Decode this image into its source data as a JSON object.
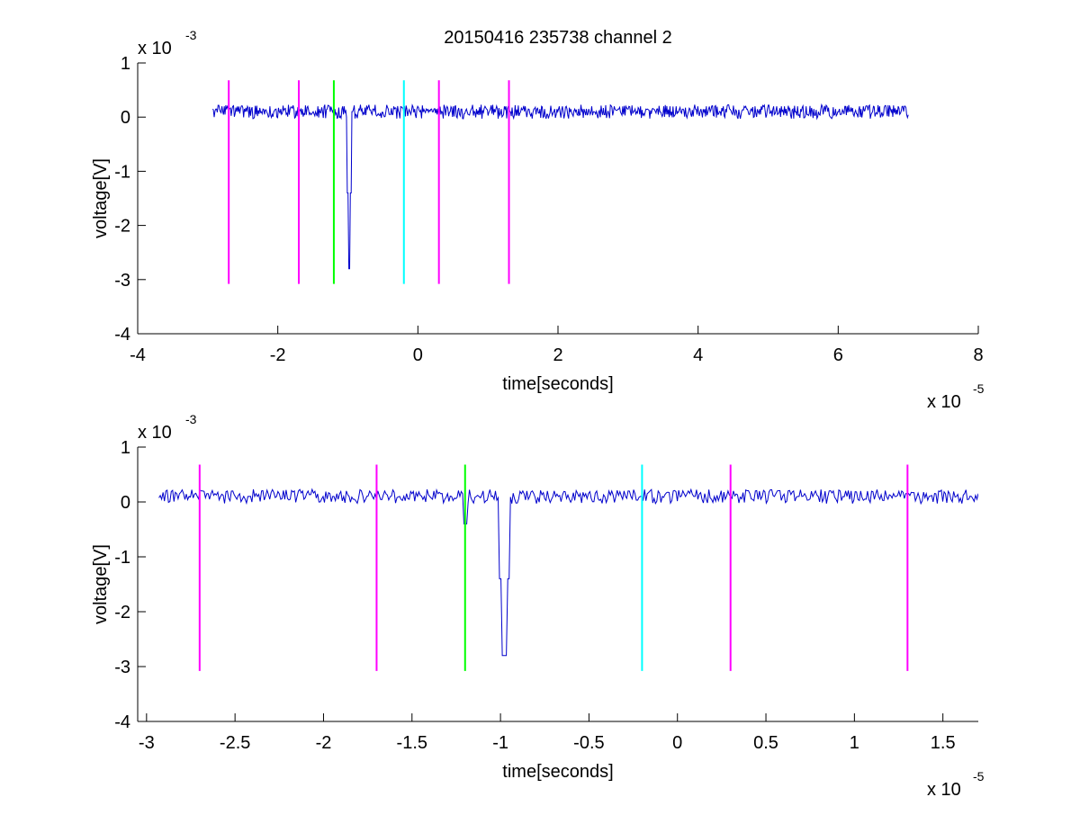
{
  "figure": {
    "title": "20150416 235738 channel 2"
  },
  "colors": {
    "signal": "#0000cc",
    "magenta": "#ff00ff",
    "green": "#00ff00",
    "cyan": "#00ffff"
  },
  "chart_data": [
    {
      "type": "line",
      "title": "20150416 235738 channel 2",
      "xlabel": "time[seconds]",
      "ylabel": "voltage[V]",
      "x_multiplier": "x 10",
      "x_exponent": "-5",
      "y_multiplier": "x 10",
      "y_exponent": "-3",
      "xlim": [
        -4,
        8
      ],
      "ylim": [
        -4,
        1
      ],
      "xticks": [
        -4,
        -2,
        0,
        2,
        4,
        6,
        8
      ],
      "xtick_labels": [
        "-4",
        "-2",
        "0",
        "2",
        "4",
        "6",
        "8"
      ],
      "yticks": [
        -4,
        -3,
        -2,
        -1,
        0,
        1
      ],
      "ytick_labels": [
        "-4",
        "-3",
        "-2",
        "-1",
        "0",
        "1"
      ],
      "grid": false,
      "series": [
        {
          "style": "noisy-signal",
          "x_range": [
            -2.93,
            7.0
          ],
          "baseline": 0.1,
          "noise_amplitude": 0.13,
          "spike": {
            "x": -0.98,
            "min": -2.8
          }
        }
      ],
      "markers": [
        {
          "x": -2.7,
          "y": [
            -3.08,
            0.68
          ],
          "color": "magenta"
        },
        {
          "x": -1.7,
          "y": [
            -3.08,
            0.68
          ],
          "color": "magenta"
        },
        {
          "x": -1.2,
          "y": [
            -3.08,
            0.68
          ],
          "color": "green"
        },
        {
          "x": -0.2,
          "y": [
            -3.08,
            0.68
          ],
          "color": "cyan"
        },
        {
          "x": 0.3,
          "y": [
            -3.08,
            0.68
          ],
          "color": "magenta"
        },
        {
          "x": 1.3,
          "y": [
            -3.08,
            0.68
          ],
          "color": "magenta"
        }
      ]
    },
    {
      "type": "line",
      "title": "",
      "xlabel": "time[seconds]",
      "ylabel": "voltage[V]",
      "x_multiplier": "x 10",
      "x_exponent": "-5",
      "y_multiplier": "x 10",
      "y_exponent": "-3",
      "xlim": [
        -3.05,
        1.7
      ],
      "ylim": [
        -4,
        1
      ],
      "xticks": [
        -3,
        -2.5,
        -2,
        -1.5,
        -1,
        -0.5,
        0,
        0.5,
        1,
        1.5
      ],
      "xtick_labels": [
        "-3",
        "-2.5",
        "-2",
        "-1.5",
        "-1",
        "-0.5",
        "0",
        "0.5",
        "1",
        "1.5"
      ],
      "yticks": [
        -4,
        -3,
        -2,
        -1,
        0,
        1
      ],
      "ytick_labels": [
        "-4",
        "-3",
        "-2",
        "-1",
        "0",
        "1"
      ],
      "grid": false,
      "series": [
        {
          "style": "noisy-signal",
          "x_range": [
            -2.93,
            1.7
          ],
          "baseline": 0.1,
          "noise_amplitude": 0.13,
          "spike": {
            "x": -0.98,
            "min": -2.8
          },
          "dip": {
            "x": -1.2,
            "min": -0.4
          }
        }
      ],
      "markers": [
        {
          "x": -2.7,
          "y": [
            -3.08,
            0.68
          ],
          "color": "magenta"
        },
        {
          "x": -1.7,
          "y": [
            -3.08,
            0.68
          ],
          "color": "magenta"
        },
        {
          "x": -1.2,
          "y": [
            -3.08,
            0.68
          ],
          "color": "green"
        },
        {
          "x": -0.2,
          "y": [
            -3.08,
            0.68
          ],
          "color": "cyan"
        },
        {
          "x": 0.3,
          "y": [
            -3.08,
            0.68
          ],
          "color": "magenta"
        },
        {
          "x": 1.3,
          "y": [
            -3.08,
            0.68
          ],
          "color": "magenta"
        }
      ]
    }
  ]
}
